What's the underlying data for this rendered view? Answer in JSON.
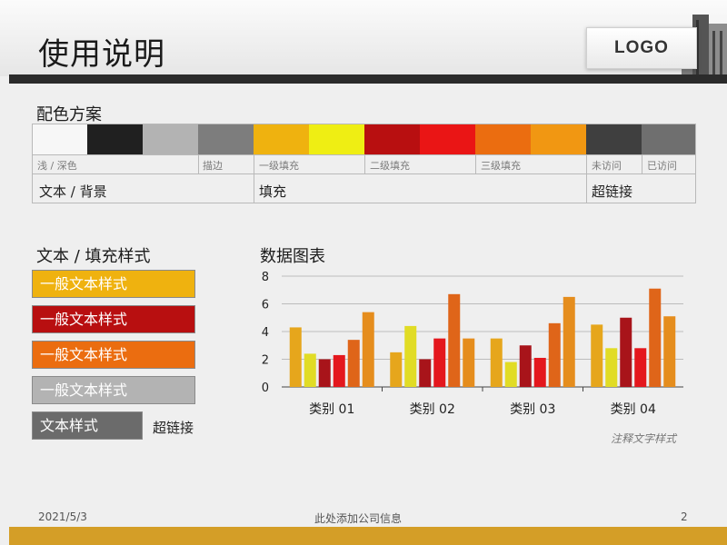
{
  "header": {
    "title": "使用说明",
    "logo": "LOGO"
  },
  "palette": {
    "heading": "配色方案",
    "swatches": [
      {
        "color": "#f7f7f7"
      },
      {
        "color": "#202020"
      },
      {
        "color": "#b3b3b3"
      },
      {
        "color": "#7d7d7d"
      },
      {
        "color": "#efb20f"
      },
      {
        "color": "#efee13"
      },
      {
        "color": "#b80f10"
      },
      {
        "color": "#ea1515"
      },
      {
        "color": "#eb6d10"
      },
      {
        "color": "#f19712"
      },
      {
        "color": "#3f3f3f"
      },
      {
        "color": "#6f6f6f"
      }
    ],
    "tiny_labels": [
      "浅 / 深色",
      "描边",
      "一级填充",
      "二级填充",
      "三级填充",
      "未访问",
      "已访问"
    ],
    "mid_labels": [
      "文本 / 背景",
      "填充",
      "超链接"
    ]
  },
  "styles": {
    "heading": "文本 / 填充样式",
    "items": [
      {
        "label": "一般文本样式",
        "color": "#efb20f"
      },
      {
        "label": "一般文本样式",
        "color": "#b80f10"
      },
      {
        "label": "一般文本样式",
        "color": "#eb6d10"
      },
      {
        "label": "一般文本样式",
        "color": "#b3b3b3"
      }
    ],
    "text_style": {
      "label": "文本样式",
      "color": "#6b6b6b"
    },
    "hyperlink": "超链接"
  },
  "chart_heading": "数据图表",
  "chart_data": {
    "type": "bar",
    "categories": [
      "类别 01",
      "类别 02",
      "类别 03",
      "类别 04"
    ],
    "series": [
      {
        "values": [
          4.3,
          2.5,
          3.5,
          4.5
        ],
        "color": "#e6a61c"
      },
      {
        "values": [
          2.4,
          4.4,
          1.8,
          2.8
        ],
        "color": "#e1dc25"
      },
      {
        "values": [
          2.0,
          2.0,
          3.0,
          5.0
        ],
        "color": "#a8141a"
      },
      {
        "values": [
          2.3,
          3.5,
          2.1,
          2.8
        ],
        "color": "#e4171d"
      },
      {
        "values": [
          3.4,
          6.7,
          4.6,
          7.1
        ],
        "color": "#df6519"
      },
      {
        "values": [
          5.4,
          3.5,
          6.5,
          5.1
        ],
        "color": "#e58d1d"
      }
    ],
    "y_ticks": [
      "0",
      "2",
      "4",
      "6",
      "8"
    ],
    "ylim": [
      0,
      8
    ],
    "grid": true
  },
  "annotation": "注释文字样式",
  "footer": {
    "date": "2021/5/3",
    "company": "此处添加公司信息",
    "page": "2"
  }
}
